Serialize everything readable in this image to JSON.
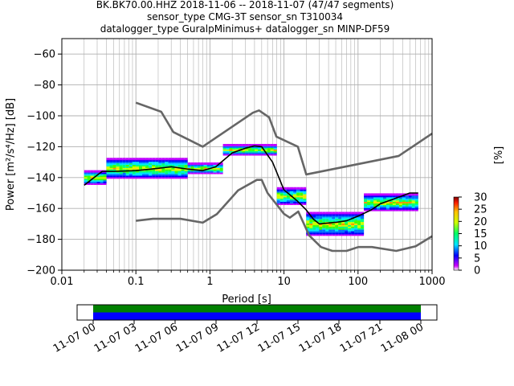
{
  "title": {
    "line1": "BK.BK70.00.HHZ   2018-11-06 -- 2018-11-07  (47/47 segments)",
    "line2": "sensor_type CMG-3T sensor_sn T310034",
    "line3": "datalogger_type GuralpMinimus+ datalogger_sn MINP-DF59"
  },
  "colorbar": {
    "label": "[%]",
    "ticks": [
      0,
      5,
      10,
      15,
      20,
      25,
      30
    ]
  },
  "colors": {
    "nlnm_nhnm": "#666666",
    "mode": "#000000",
    "grid": "#b0b0b0",
    "timeline_a": "#008000",
    "timeline_b": "#0000ff"
  },
  "chart_data": [
    {
      "type": "heatmap",
      "xlabel": "Period [s]",
      "ylabel": "Power [m²/s⁴/Hz] [dB]",
      "xscale": "log",
      "xlim": [
        0.01,
        1000
      ],
      "ylim": [
        -200,
        -50
      ],
      "xticks": [
        0.01,
        0.1,
        1,
        10,
        100,
        1000
      ],
      "xtick_labels": [
        "0.01",
        "0.1",
        "1",
        "10",
        "100",
        "1000"
      ],
      "yticks": [
        -200,
        -180,
        -160,
        -140,
        -120,
        -100,
        -80,
        -60
      ],
      "grid": true,
      "series": [
        {
          "values": [
            [
              0.1,
              -91.5
            ],
            [
              0.22,
              -97.4
            ],
            [
              0.32,
              -110.5
            ],
            [
              0.8,
              -120
            ],
            [
              3.8,
              -98
            ],
            [
              4.6,
              -96.5
            ],
            [
              6.3,
              -101
            ],
            [
              7.9,
              -113.5
            ],
            [
              15.4,
              -120
            ],
            [
              20,
              -138
            ],
            [
              354,
              -126
            ],
            [
              1000,
              -111.5
            ]
          ]
        },
        {
          "values": [
            [
              0.1,
              -168
            ],
            [
              0.17,
              -166.7
            ],
            [
              0.4,
              -166.7
            ],
            [
              0.8,
              -169.2
            ],
            [
              1.24,
              -163.7
            ],
            [
              2.4,
              -148.3
            ],
            [
              4.3,
              -141.5
            ],
            [
              5,
              -141.5
            ],
            [
              6,
              -150
            ],
            [
              10,
              -163.5
            ],
            [
              12,
              -166
            ],
            [
              15.6,
              -162
            ],
            [
              21.9,
              -177.5
            ],
            [
              31.6,
              -185
            ],
            [
              45,
              -187.5
            ],
            [
              70,
              -187.5
            ],
            [
              101,
              -185
            ],
            [
              154,
              -185
            ],
            [
              328,
              -187.5
            ],
            [
              600,
              -184.5
            ],
            [
              1000,
              -178
            ]
          ]
        },
        {
          "values": [
            [
              0.02,
              -145
            ],
            [
              0.03,
              -138.5
            ],
            [
              0.035,
              -136
            ],
            [
              0.05,
              -136
            ],
            [
              0.1,
              -135.5
            ],
            [
              0.2,
              -134
            ],
            [
              0.3,
              -133
            ],
            [
              0.5,
              -134.5
            ],
            [
              0.8,
              -135.5
            ],
            [
              1.2,
              -133
            ],
            [
              2,
              -124
            ],
            [
              3,
              -121
            ],
            [
              4,
              -119.5
            ],
            [
              5,
              -120
            ],
            [
              7,
              -130
            ],
            [
              10,
              -148
            ],
            [
              15,
              -155
            ],
            [
              20,
              -161
            ],
            [
              25,
              -167
            ],
            [
              30,
              -170
            ],
            [
              50,
              -169
            ],
            [
              70,
              -168
            ],
            [
              100,
              -165
            ],
            [
              150,
              -161
            ],
            [
              200,
              -157
            ],
            [
              300,
              -154
            ],
            [
              500,
              -150
            ],
            [
              650,
              -150
            ]
          ]
        }
      ],
      "density_bands": [
        {
          "xmin": 0.02,
          "xmax": 0.04,
          "center": -140,
          "halfwidth": 4
        },
        {
          "xmin": 0.04,
          "xmax": 0.5,
          "center": -134,
          "halfwidth": 6
        },
        {
          "xmin": 0.5,
          "xmax": 1.5,
          "center": -134,
          "halfwidth": 3
        },
        {
          "xmin": 1.5,
          "xmax": 8,
          "center": -122,
          "halfwidth": 3
        },
        {
          "xmin": 8,
          "xmax": 20,
          "center": -152,
          "halfwidth": 5
        },
        {
          "xmin": 20,
          "xmax": 120,
          "center": -170,
          "halfwidth": 7
        },
        {
          "xmin": 120,
          "xmax": 650,
          "center": -156,
          "halfwidth": 5
        }
      ]
    },
    {
      "type": "bar",
      "xticks": [
        "11-07 00",
        "11-07 03",
        "11-07 06",
        "11-07 09",
        "11-07 12",
        "11-07 15",
        "11-07 18",
        "11-07 21",
        "11-08 00"
      ],
      "coverage": [
        {
          "start_hour": 0,
          "end_hour": 24,
          "level": "upper",
          "color": "#008000"
        },
        {
          "start_hour": 0,
          "end_hour": 24,
          "level": "lower",
          "color": "#0000ff"
        }
      ]
    }
  ]
}
